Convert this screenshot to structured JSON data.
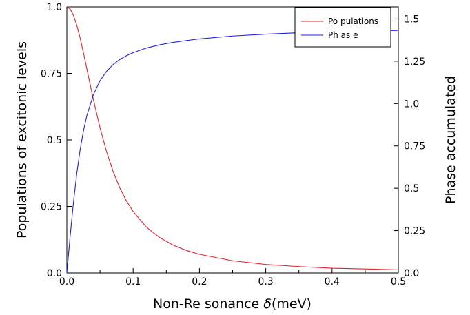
{
  "chart_data": {
    "type": "line",
    "xlabel_main": "Non-Re sonance ",
    "xlabel_symbol": "δ",
    "xlabel_unit": "(meV)",
    "ylabel_left": "Populations of excitonic levels",
    "ylabel_right": "Phase accumulated",
    "xlim": [
      0,
      0.5
    ],
    "ylim_left": [
      0,
      1.0
    ],
    "ylim_right": [
      0,
      1.571
    ],
    "x_ticks": [
      "0.0",
      "0.1",
      "0.2",
      "0.3",
      "0.4",
      "0.5"
    ],
    "x_tick_values": [
      0,
      0.1,
      0.2,
      0.3,
      0.4,
      0.5
    ],
    "y_left_ticks": [
      "0.0",
      "0.25",
      "0.5",
      "0.75",
      "1.0"
    ],
    "y_left_tick_values": [
      0,
      0.25,
      0.5,
      0.75,
      1.0
    ],
    "y_right_ticks": [
      "0.0",
      "0.25",
      "0.5",
      "0.75",
      "1.0",
      "1.25",
      "1.5"
    ],
    "y_right_tick_values": [
      0,
      0.25,
      0.5,
      0.75,
      1.0,
      1.25,
      1.5
    ],
    "grid": false,
    "legend_position": "top-right",
    "series": [
      {
        "name": "Po pulations",
        "axis": "left",
        "color": "#e8202a",
        "x": [
          0,
          0.005,
          0.01,
          0.015,
          0.02,
          0.025,
          0.03,
          0.04,
          0.05,
          0.06,
          0.07,
          0.08,
          0.09,
          0.1,
          0.12,
          0.14,
          0.16,
          0.18,
          0.2,
          0.25,
          0.3,
          0.35,
          0.4,
          0.45,
          0.5
        ],
        "values": [
          1.0,
          0.992,
          0.968,
          0.931,
          0.883,
          0.828,
          0.769,
          0.652,
          0.546,
          0.455,
          0.38,
          0.319,
          0.27,
          0.231,
          0.172,
          0.133,
          0.105,
          0.085,
          0.07,
          0.046,
          0.032,
          0.024,
          0.018,
          0.015,
          0.012
        ]
      },
      {
        "name": "Ph as e",
        "axis": "right",
        "color": "#2020e0",
        "x": [
          0,
          0.005,
          0.01,
          0.015,
          0.02,
          0.025,
          0.03,
          0.04,
          0.05,
          0.06,
          0.07,
          0.08,
          0.09,
          0.1,
          0.12,
          0.14,
          0.16,
          0.18,
          0.2,
          0.25,
          0.3,
          0.35,
          0.4,
          0.45,
          0.5
        ],
        "values": [
          0,
          0.218,
          0.418,
          0.588,
          0.727,
          0.838,
          0.927,
          1.052,
          1.135,
          1.191,
          1.231,
          1.261,
          1.283,
          1.301,
          1.328,
          1.347,
          1.361,
          1.372,
          1.382,
          1.399,
          1.41,
          1.418,
          1.424,
          1.429,
          1.432
        ]
      }
    ]
  }
}
